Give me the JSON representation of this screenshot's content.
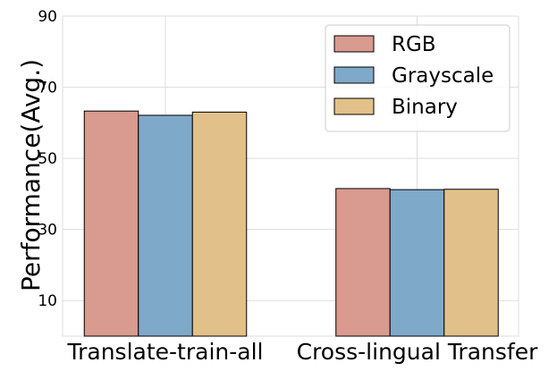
{
  "chart_data": {
    "type": "bar",
    "title": "",
    "xlabel": "",
    "ylabel": "Performance(Avg.)",
    "categories": [
      "Translate-train-all",
      "Cross-lingual Transfer"
    ],
    "series": [
      {
        "name": "RGB",
        "values": [
          63.3,
          41.5
        ],
        "color": "#d99a8f"
      },
      {
        "name": "Grayscale",
        "values": [
          62.1,
          41.2
        ],
        "color": "#7fa9c9"
      },
      {
        "name": "Binary",
        "values": [
          63.0,
          41.3
        ],
        "color": "#e2c089"
      }
    ],
    "ylim": [
      0,
      90
    ],
    "yticks": [
      10,
      30,
      50,
      70,
      90
    ],
    "grid": true,
    "legend_position": "top-right"
  }
}
